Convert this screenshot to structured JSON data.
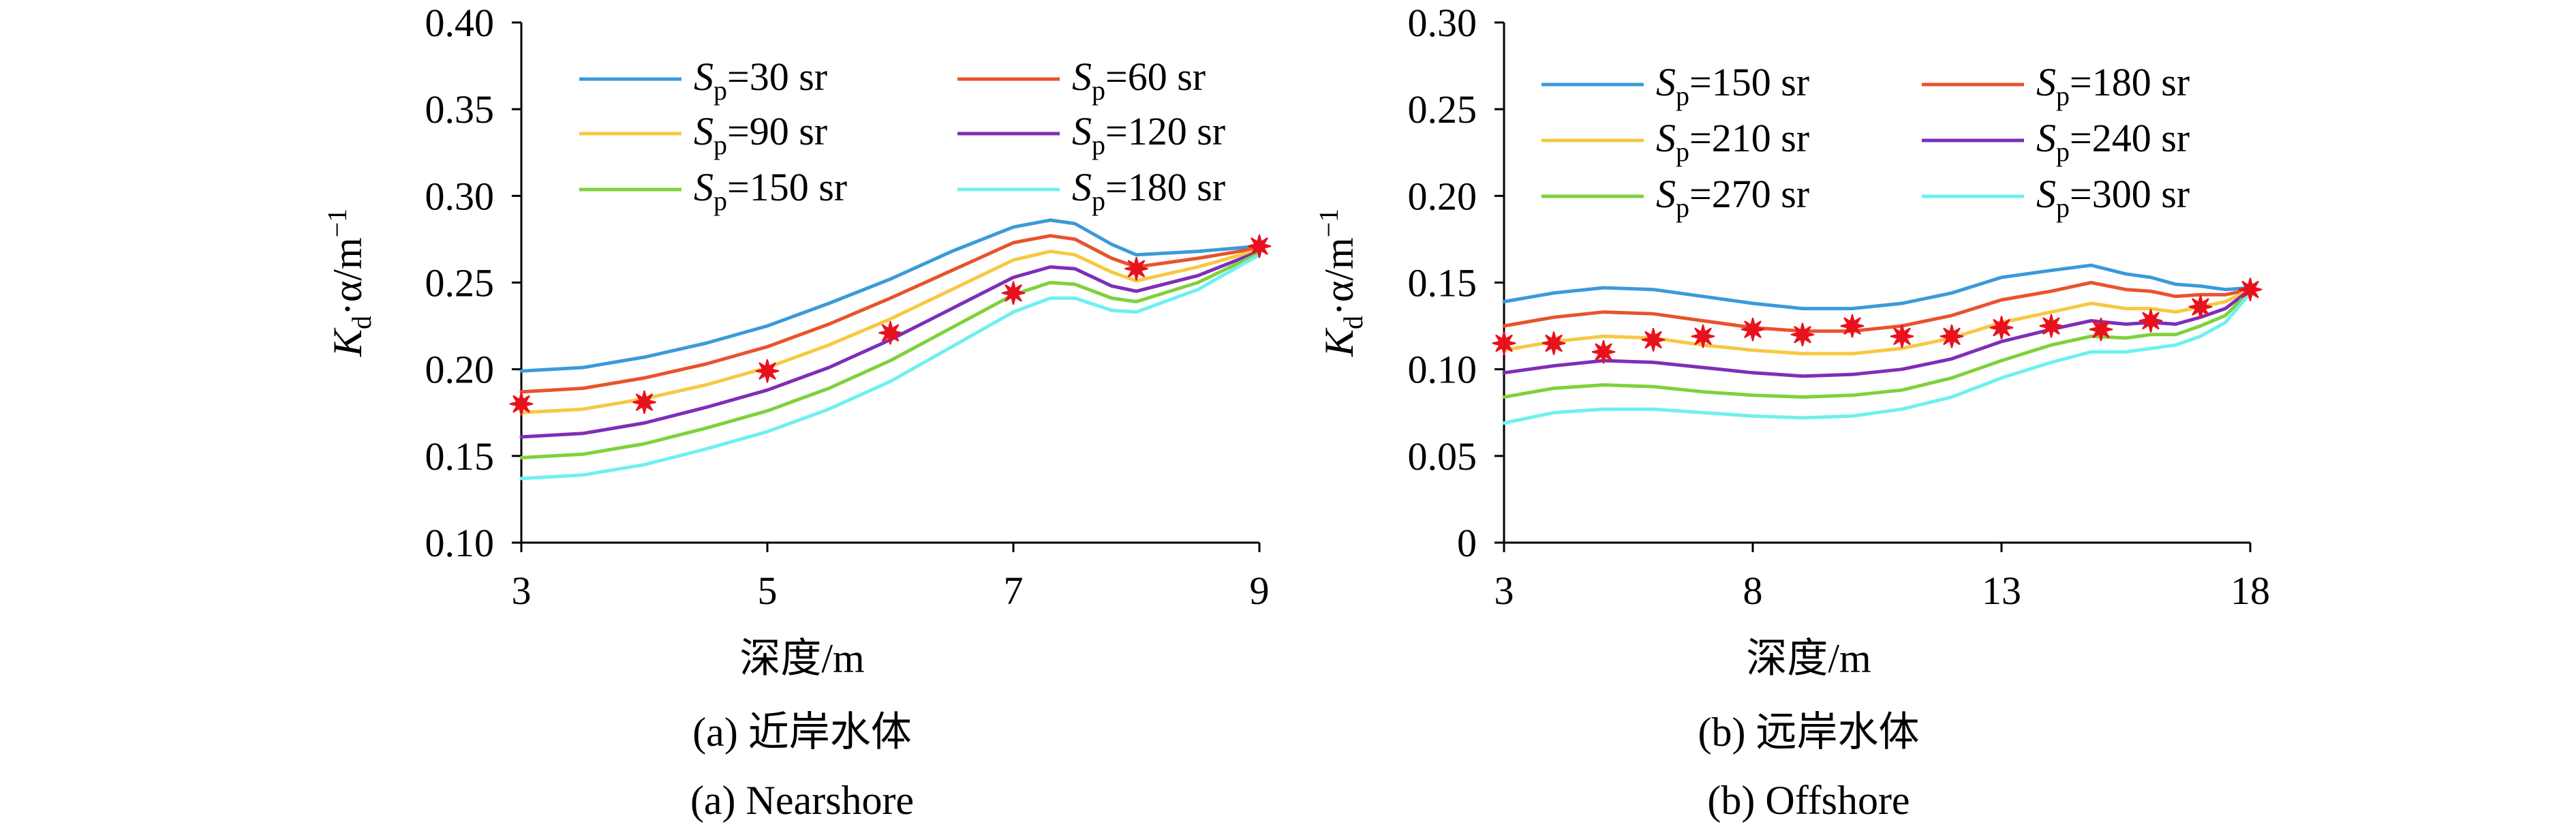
{
  "chart_data": [
    {
      "type": "line",
      "panel_caption_cn": "(a) 近岸水体",
      "panel_caption_en": "(a) Nearshore",
      "xlabel": "深度/m",
      "ylabel": "Kd·α/m⁻¹",
      "xlim": [
        3,
        9
      ],
      "ylim": [
        0.1,
        0.4
      ],
      "xticks": [
        "3",
        "5",
        "7",
        "9"
      ],
      "yticks": [
        "0.10",
        "0.15",
        "0.20",
        "0.25",
        "0.30",
        "0.35",
        "0.40"
      ],
      "x": [
        3,
        3.5,
        4,
        4.5,
        5,
        5.5,
        6,
        6.5,
        7,
        7.3,
        7.5,
        7.8,
        8,
        8.5,
        9
      ],
      "series": [
        {
          "name": "Sp=30 sr",
          "sp": "30",
          "color": "#3a9ad9",
          "values": [
            0.199,
            0.201,
            0.207,
            0.215,
            0.225,
            0.238,
            0.252,
            0.268,
            0.282,
            0.286,
            0.284,
            0.272,
            0.266,
            0.268,
            0.271
          ]
        },
        {
          "name": "Sp=60 sr",
          "sp": "60",
          "color": "#e8532c",
          "values": [
            0.187,
            0.189,
            0.195,
            0.203,
            0.213,
            0.226,
            0.241,
            0.257,
            0.273,
            0.277,
            0.275,
            0.264,
            0.259,
            0.264,
            0.27
          ]
        },
        {
          "name": "Sp=90 sr",
          "sp": "90",
          "color": "#f7c841",
          "values": [
            0.175,
            0.177,
            0.183,
            0.191,
            0.201,
            0.214,
            0.229,
            0.246,
            0.263,
            0.268,
            0.266,
            0.256,
            0.251,
            0.259,
            0.269
          ]
        },
        {
          "name": "Sp=120 sr",
          "sp": "120",
          "color": "#7e2eb8",
          "values": [
            0.161,
            0.163,
            0.169,
            0.178,
            0.188,
            0.201,
            0.217,
            0.235,
            0.253,
            0.259,
            0.258,
            0.248,
            0.245,
            0.254,
            0.268
          ]
        },
        {
          "name": "Sp=150 sr",
          "sp": "150",
          "color": "#7ed13b",
          "values": [
            0.149,
            0.151,
            0.157,
            0.166,
            0.176,
            0.189,
            0.205,
            0.224,
            0.243,
            0.25,
            0.249,
            0.241,
            0.239,
            0.25,
            0.267
          ]
        },
        {
          "name": "Sp=180 sr",
          "sp": "180",
          "color": "#6ef0f0",
          "values": [
            0.137,
            0.139,
            0.145,
            0.154,
            0.164,
            0.177,
            0.193,
            0.213,
            0.233,
            0.241,
            0.241,
            0.234,
            0.233,
            0.246,
            0.266
          ]
        }
      ],
      "markers": {
        "x": [
          3,
          4,
          5,
          6,
          7,
          8,
          9
        ],
        "y": [
          0.18,
          0.181,
          0.199,
          0.221,
          0.244,
          0.258,
          0.271
        ],
        "color": "#e8121e"
      }
    },
    {
      "type": "line",
      "panel_caption_cn": "(b) 远岸水体",
      "panel_caption_en": "(b) Offshore",
      "xlabel": "深度/m",
      "ylabel": "Kd·α/m⁻¹",
      "xlim": [
        3,
        18
      ],
      "ylim": [
        0,
        0.3
      ],
      "xticks": [
        "3",
        "8",
        "13",
        "18"
      ],
      "yticks": [
        "0",
        "0.05",
        "0.10",
        "0.15",
        "0.20",
        "0.25",
        "0.30"
      ],
      "x": [
        3,
        4,
        5,
        6,
        7,
        8,
        9,
        10,
        11,
        12,
        13,
        14,
        14.8,
        15.5,
        16,
        16.5,
        17,
        17.5,
        18
      ],
      "series": [
        {
          "name": "Sp=150 sr",
          "sp": "150",
          "color": "#3a9ad9",
          "values": [
            0.139,
            0.144,
            0.147,
            0.146,
            0.142,
            0.138,
            0.135,
            0.135,
            0.138,
            0.144,
            0.153,
            0.157,
            0.16,
            0.155,
            0.153,
            0.149,
            0.148,
            0.146,
            0.147
          ]
        },
        {
          "name": "Sp=180 sr",
          "sp": "180",
          "color": "#e8532c",
          "values": [
            0.125,
            0.13,
            0.133,
            0.132,
            0.128,
            0.124,
            0.122,
            0.122,
            0.125,
            0.131,
            0.14,
            0.145,
            0.15,
            0.146,
            0.145,
            0.142,
            0.143,
            0.143,
            0.146
          ]
        },
        {
          "name": "Sp=210 sr",
          "sp": "210",
          "color": "#f7c841",
          "values": [
            0.111,
            0.116,
            0.119,
            0.118,
            0.114,
            0.111,
            0.109,
            0.109,
            0.112,
            0.118,
            0.127,
            0.133,
            0.138,
            0.135,
            0.135,
            0.133,
            0.136,
            0.139,
            0.146
          ]
        },
        {
          "name": "Sp=240 sr",
          "sp": "240",
          "color": "#7e2eb8",
          "values": [
            0.098,
            0.102,
            0.105,
            0.104,
            0.101,
            0.098,
            0.096,
            0.097,
            0.1,
            0.106,
            0.116,
            0.123,
            0.128,
            0.126,
            0.127,
            0.126,
            0.13,
            0.135,
            0.146
          ]
        },
        {
          "name": "Sp=270 sr",
          "sp": "270",
          "color": "#7ed13b",
          "values": [
            0.084,
            0.089,
            0.091,
            0.09,
            0.087,
            0.085,
            0.084,
            0.085,
            0.088,
            0.095,
            0.105,
            0.114,
            0.119,
            0.118,
            0.12,
            0.12,
            0.125,
            0.131,
            0.145
          ]
        },
        {
          "name": "Sp=300 sr",
          "sp": "300",
          "color": "#6ef0f0",
          "values": [
            0.069,
            0.075,
            0.077,
            0.077,
            0.075,
            0.073,
            0.072,
            0.073,
            0.077,
            0.084,
            0.095,
            0.104,
            0.11,
            0.11,
            0.112,
            0.114,
            0.119,
            0.127,
            0.144
          ]
        }
      ],
      "markers": {
        "x": [
          3,
          4,
          5,
          6,
          7,
          8,
          9,
          10,
          11,
          12,
          13,
          14,
          15,
          16,
          17,
          18
        ],
        "y": [
          0.115,
          0.115,
          0.11,
          0.117,
          0.119,
          0.123,
          0.12,
          0.125,
          0.119,
          0.119,
          0.124,
          0.125,
          0.123,
          0.128,
          0.136,
          0.146
        ],
        "color": "#e8121e"
      }
    }
  ]
}
